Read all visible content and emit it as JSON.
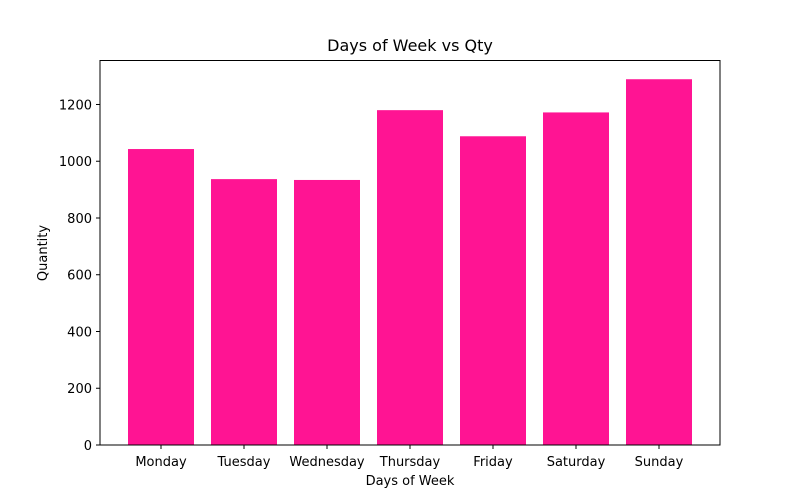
{
  "chart_data": {
    "type": "bar",
    "title": "Days of Week vs Qty",
    "xlabel": "Days of Week",
    "ylabel": "Quantity",
    "categories": [
      "Monday",
      "Tuesday",
      "Wednesday",
      "Thursday",
      "Friday",
      "Saturday",
      "Sunday"
    ],
    "values": [
      1043,
      937,
      934,
      1180,
      1088,
      1172,
      1289
    ],
    "ylim": [
      0,
      1355
    ],
    "yticks": [
      0,
      200,
      400,
      600,
      800,
      1000,
      1200
    ],
    "bar_color": "#ff1493",
    "grid": false,
    "legend": "none"
  }
}
